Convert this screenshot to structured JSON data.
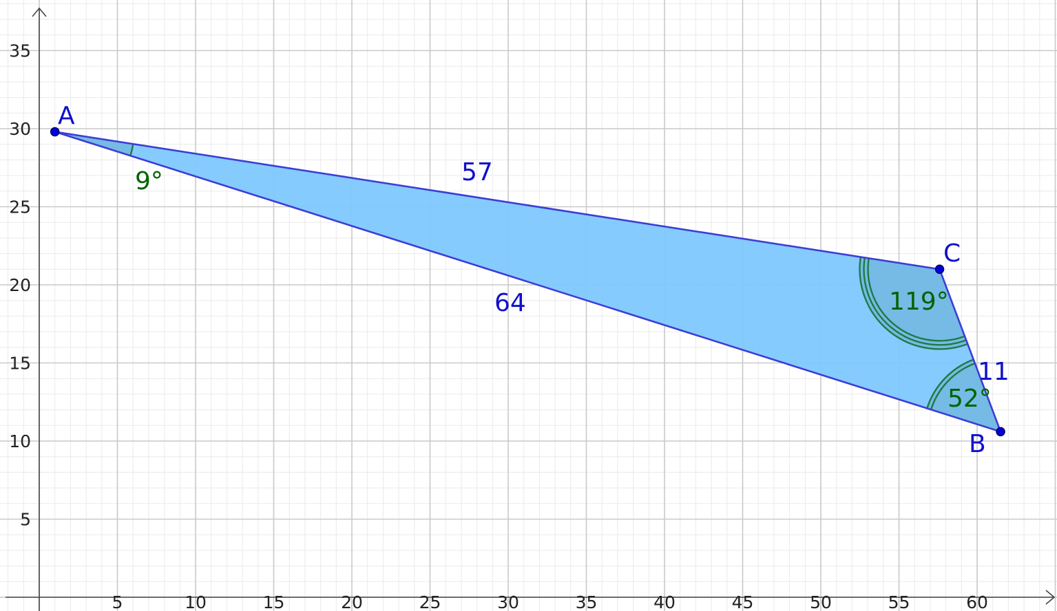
{
  "axes": {
    "x_ticks": [
      "5",
      "10",
      "15",
      "20",
      "25",
      "30",
      "35",
      "40",
      "45",
      "50",
      "55",
      "60"
    ],
    "y_ticks": [
      "5",
      "10",
      "15",
      "20",
      "25",
      "30",
      "35"
    ],
    "x_range": [
      -2,
      65
    ],
    "y_range": [
      -1,
      38
    ],
    "grid": true
  },
  "points": [
    {
      "id": "A",
      "label": "A",
      "x": 1,
      "y": 29.8
    },
    {
      "id": "B",
      "label": "B",
      "x": 61.5,
      "y": 10.6
    },
    {
      "id": "C",
      "label": "C",
      "x": 57.6,
      "y": 21
    }
  ],
  "sides": [
    {
      "id": "AC",
      "label": "57"
    },
    {
      "id": "AB",
      "label": "64"
    },
    {
      "id": "BC",
      "label": "11"
    }
  ],
  "angles": [
    {
      "vertex": "A",
      "label": "9°"
    },
    {
      "vertex": "C",
      "label": "119°"
    },
    {
      "vertex": "B",
      "label": "52°"
    }
  ],
  "colors": {
    "fill": "#7ec8fd",
    "edge": "#3d3dd6",
    "point": "#0000dd",
    "angle_arc": "#1f7a45",
    "axis": "#444444"
  }
}
